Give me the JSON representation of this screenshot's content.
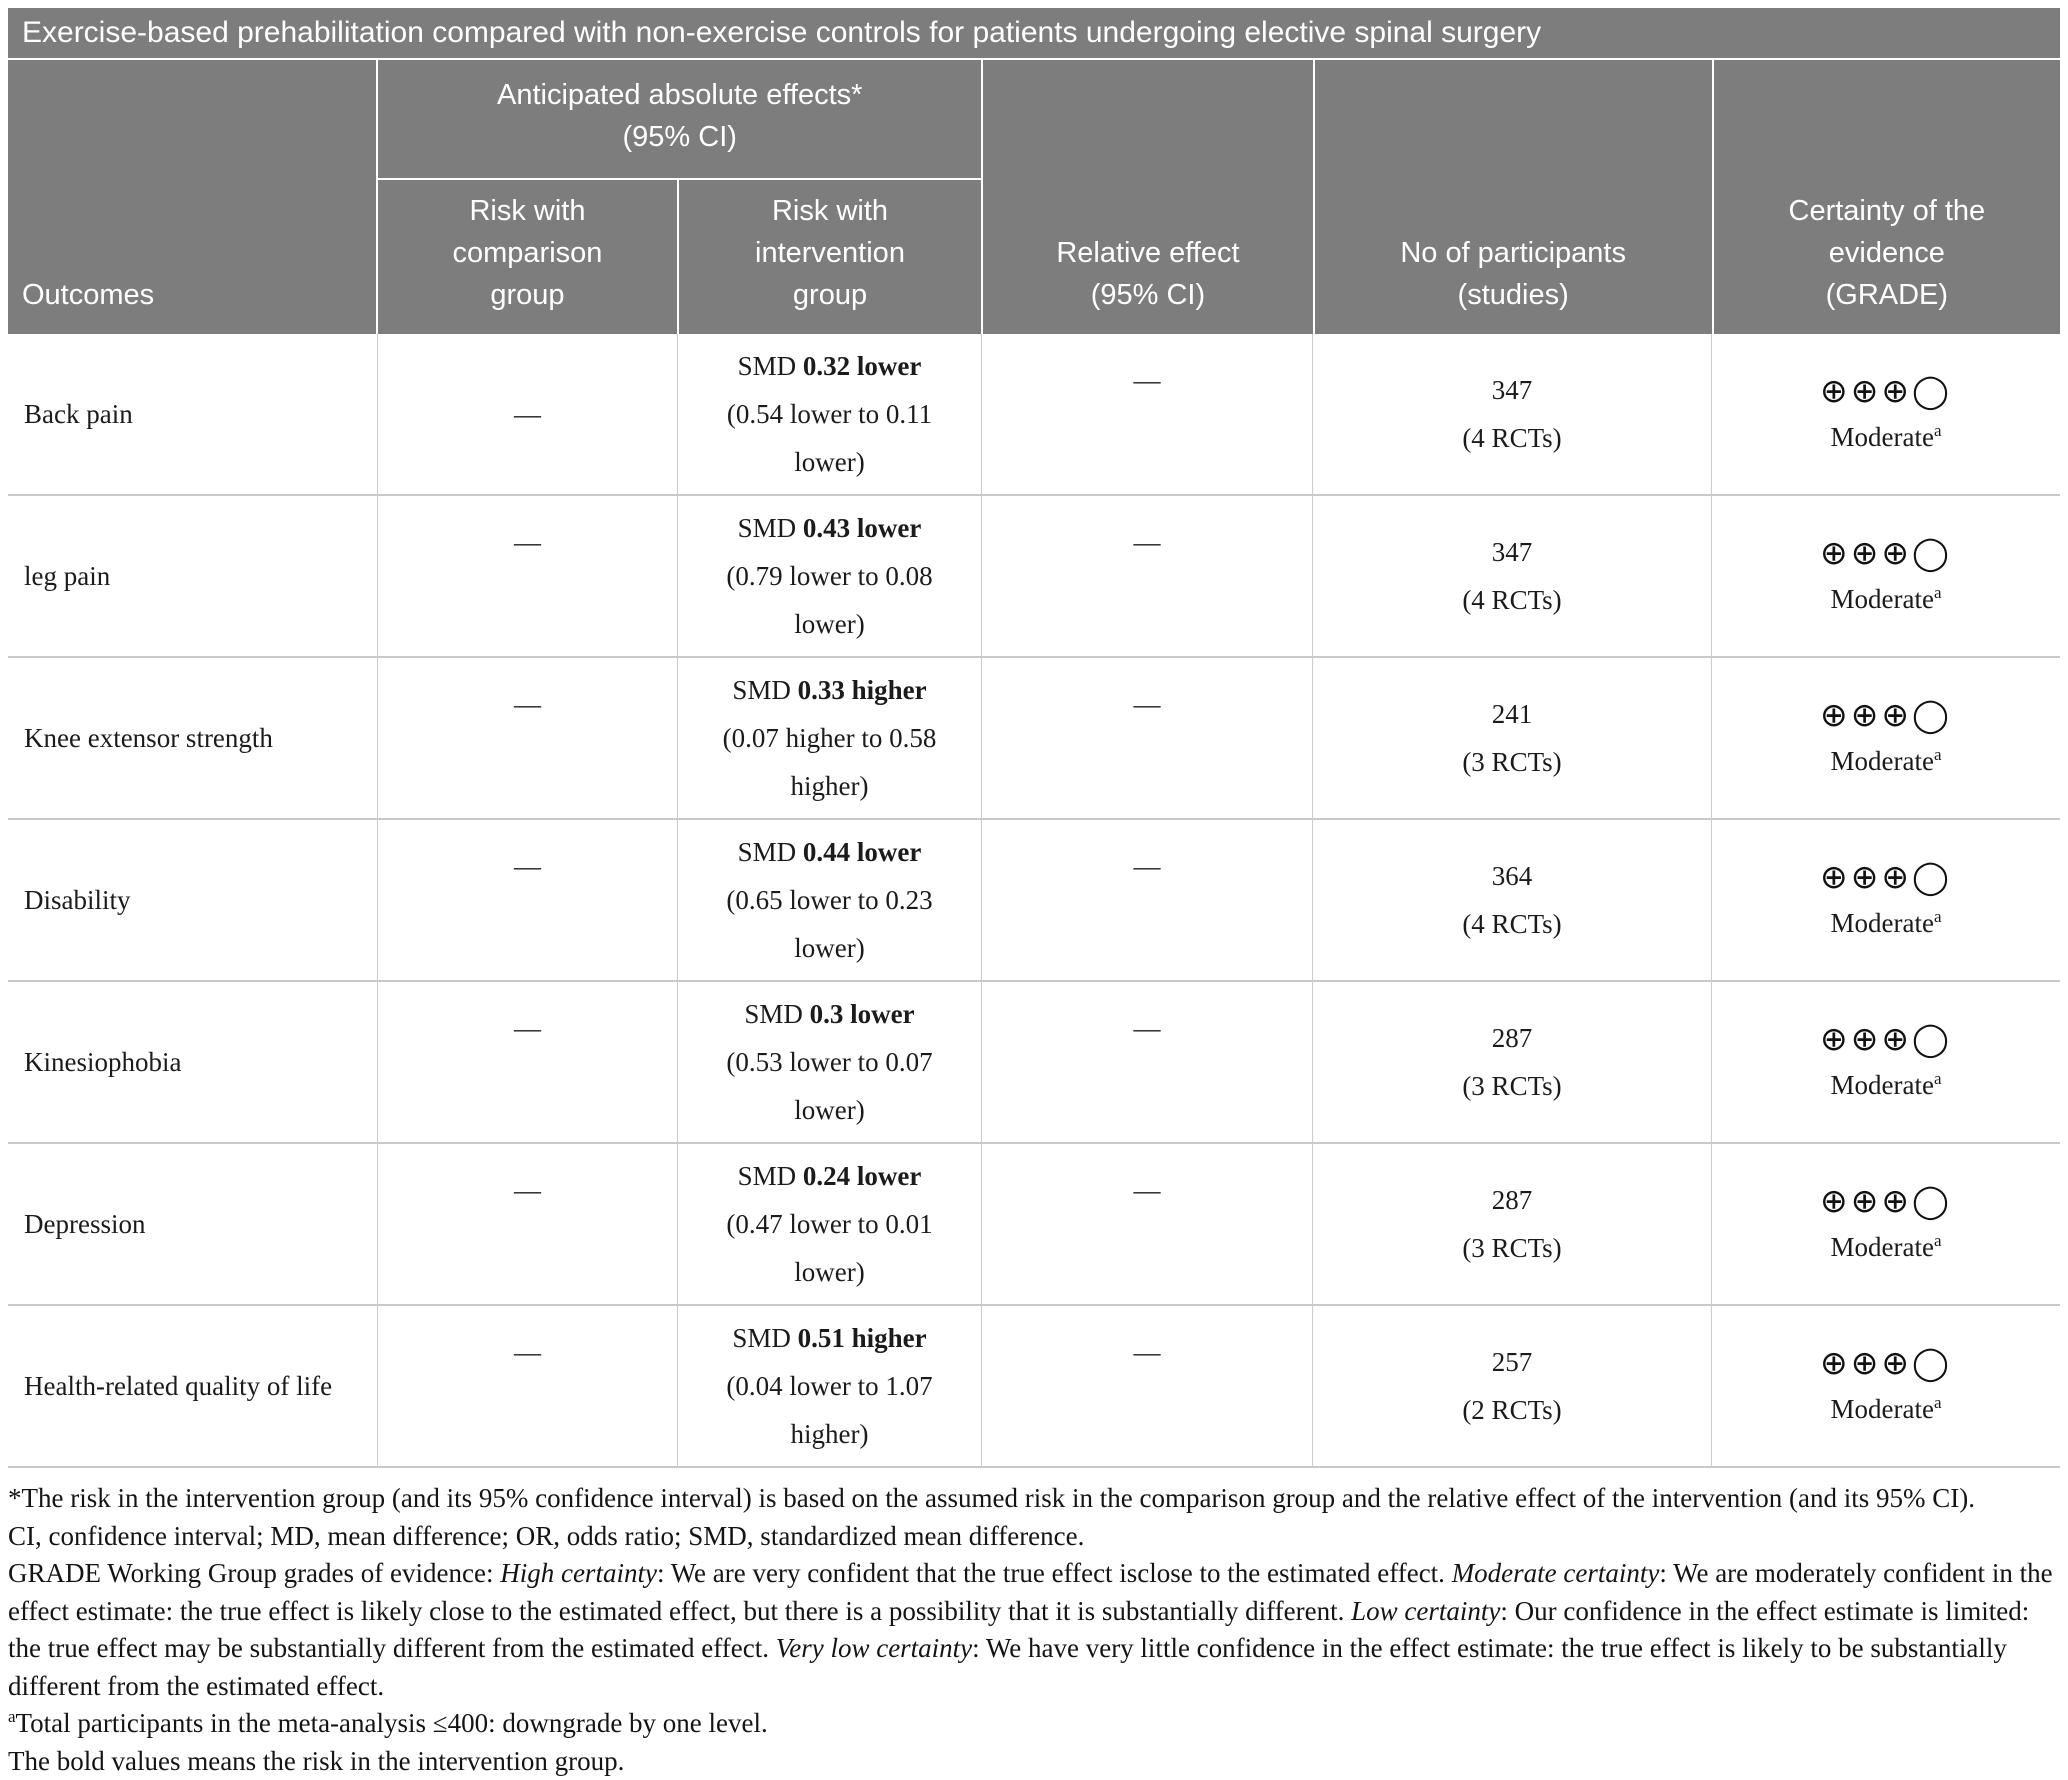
{
  "title": "Exercise-based prehabilitation compared with non-exercise controls for patients undergoing elective spinal surgery",
  "header": {
    "outcomes": "Outcomes",
    "anticipated_lines": [
      "Anticipated absolute effects*",
      "(95% CI)"
    ],
    "risk_comparison_lines": [
      "Risk with",
      "comparison",
      "group"
    ],
    "risk_intervention_lines": [
      "Risk with",
      "intervention",
      "group"
    ],
    "relative_effect_lines": [
      "Relative effect",
      "(95% CI)"
    ],
    "participants_lines": [
      "No of participants",
      "(studies)"
    ],
    "certainty_lines": [
      "Certainty of the",
      "evidence",
      "(GRADE)"
    ]
  },
  "rows": [
    {
      "outcome": "Back pain",
      "comparison_effect": "—",
      "smd_label": "SMD",
      "effect": "0.32 lower",
      "ci": "(0.54 lower to 0.11 lower)",
      "relative_effect": "—",
      "participants": "347",
      "studies": "(4 RCTs)",
      "grade_symbols": "⊕⊕⊕◯",
      "certainty": "Moderate",
      "certainty_footnote": "a"
    },
    {
      "outcome": "leg pain",
      "comparison_effect": "—",
      "smd_label": "SMD",
      "effect": "0.43 lower",
      "ci": "(0.79 lower to 0.08 lower)",
      "relative_effect": "—",
      "participants": "347",
      "studies": "(4 RCTs)",
      "grade_symbols": "⊕⊕⊕◯",
      "certainty": "Moderate",
      "certainty_footnote": "a"
    },
    {
      "outcome": "Knee extensor strength",
      "comparison_effect": "—",
      "smd_label": "SMD",
      "effect": "0.33 higher",
      "ci": "(0.07 higher to 0.58 higher)",
      "relative_effect": "—",
      "participants": "241",
      "studies": "(3 RCTs)",
      "grade_symbols": "⊕⊕⊕◯",
      "certainty": "Moderate",
      "certainty_footnote": "a"
    },
    {
      "outcome": "Disability",
      "comparison_effect": "—",
      "smd_label": "SMD",
      "effect": "0.44 lower",
      "ci": "(0.65 lower to 0.23 lower)",
      "relative_effect": "—",
      "participants": "364",
      "studies": "(4 RCTs)",
      "grade_symbols": "⊕⊕⊕◯",
      "certainty": "Moderate",
      "certainty_footnote": "a"
    },
    {
      "outcome": "Kinesiophobia",
      "comparison_effect": "—",
      "smd_label": "SMD",
      "effect": "0.3 lower",
      "ci": "(0.53 lower to 0.07 lower)",
      "relative_effect": "—",
      "participants": "287",
      "studies": "(3 RCTs)",
      "grade_symbols": "⊕⊕⊕◯",
      "certainty": "Moderate",
      "certainty_footnote": "a"
    },
    {
      "outcome": "Depression",
      "comparison_effect": "—",
      "smd_label": "SMD",
      "effect": "0.24 lower",
      "ci": "(0.47 lower to 0.01 lower)",
      "relative_effect": "—",
      "participants": "287",
      "studies": "(3 RCTs)",
      "grade_symbols": "⊕⊕⊕◯",
      "certainty": "Moderate",
      "certainty_footnote": "a"
    },
    {
      "outcome": "Health-related quality of life",
      "comparison_effect": "—",
      "smd_label": "SMD",
      "effect": "0.51 higher",
      "ci": "(0.04 lower to 1.07 higher)",
      "relative_effect": "—",
      "participants": "257",
      "studies": "(2 RCTs)",
      "grade_symbols": "⊕⊕⊕◯",
      "certainty": "Moderate",
      "certainty_footnote": "a"
    }
  ],
  "footnotes": {
    "asterisk": "*The risk in the intervention group (and its 95% confidence interval) is based on the assumed risk in the comparison group and the relative effect of the intervention (and its 95% CI).",
    "abbreviations": "CI, confidence interval; MD, mean difference; OR, odds ratio; SMD, standardized mean difference.",
    "grade": [
      "GRADE Working Group grades of evidence: ",
      "High certainty",
      ": We are very confident that the true effect isclose to the estimated effect. ",
      "Moderate certainty",
      ": We are moderately confident in the effect estimate: the true effect is likely close to the estimated effect, but there is a possibility that it is substantially different. ",
      "Low certainty",
      ": Our confidence in the effect estimate is limited: the true effect may be substantially different from the estimated effect. ",
      "Very low certainty",
      ": We have very little confidence in the effect estimate: the true effect is likely to be substantially different from the estimated effect."
    ],
    "note_a_sup": "a",
    "note_a_text": "Total participants in the meta-analysis ≤400: downgrade by one level.",
    "bold_note": "The bold values means the risk in the intervention group."
  }
}
